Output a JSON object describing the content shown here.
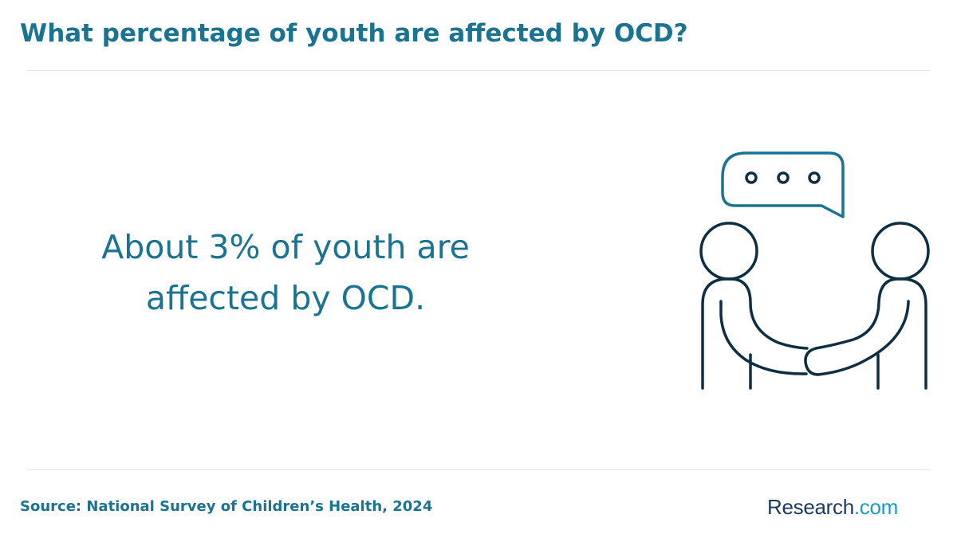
{
  "header": {
    "title": "What percentage of youth are affected by OCD?"
  },
  "main": {
    "statement": "About 3% of youth are affected by OCD.",
    "illustration_icon": "two-people-handshake-speech-bubble-icon"
  },
  "footer": {
    "source": "Source: National Survey of Children’s Health, 2024",
    "logo_part1": "Research",
    "logo_part2": ".com"
  },
  "colors": {
    "title_teal": "#1a7391",
    "icon_dark": "#0e2e42",
    "icon_teal": "#1a7391",
    "logo_navy": "#1e3a5f",
    "logo_blue": "#1a9cc0"
  }
}
